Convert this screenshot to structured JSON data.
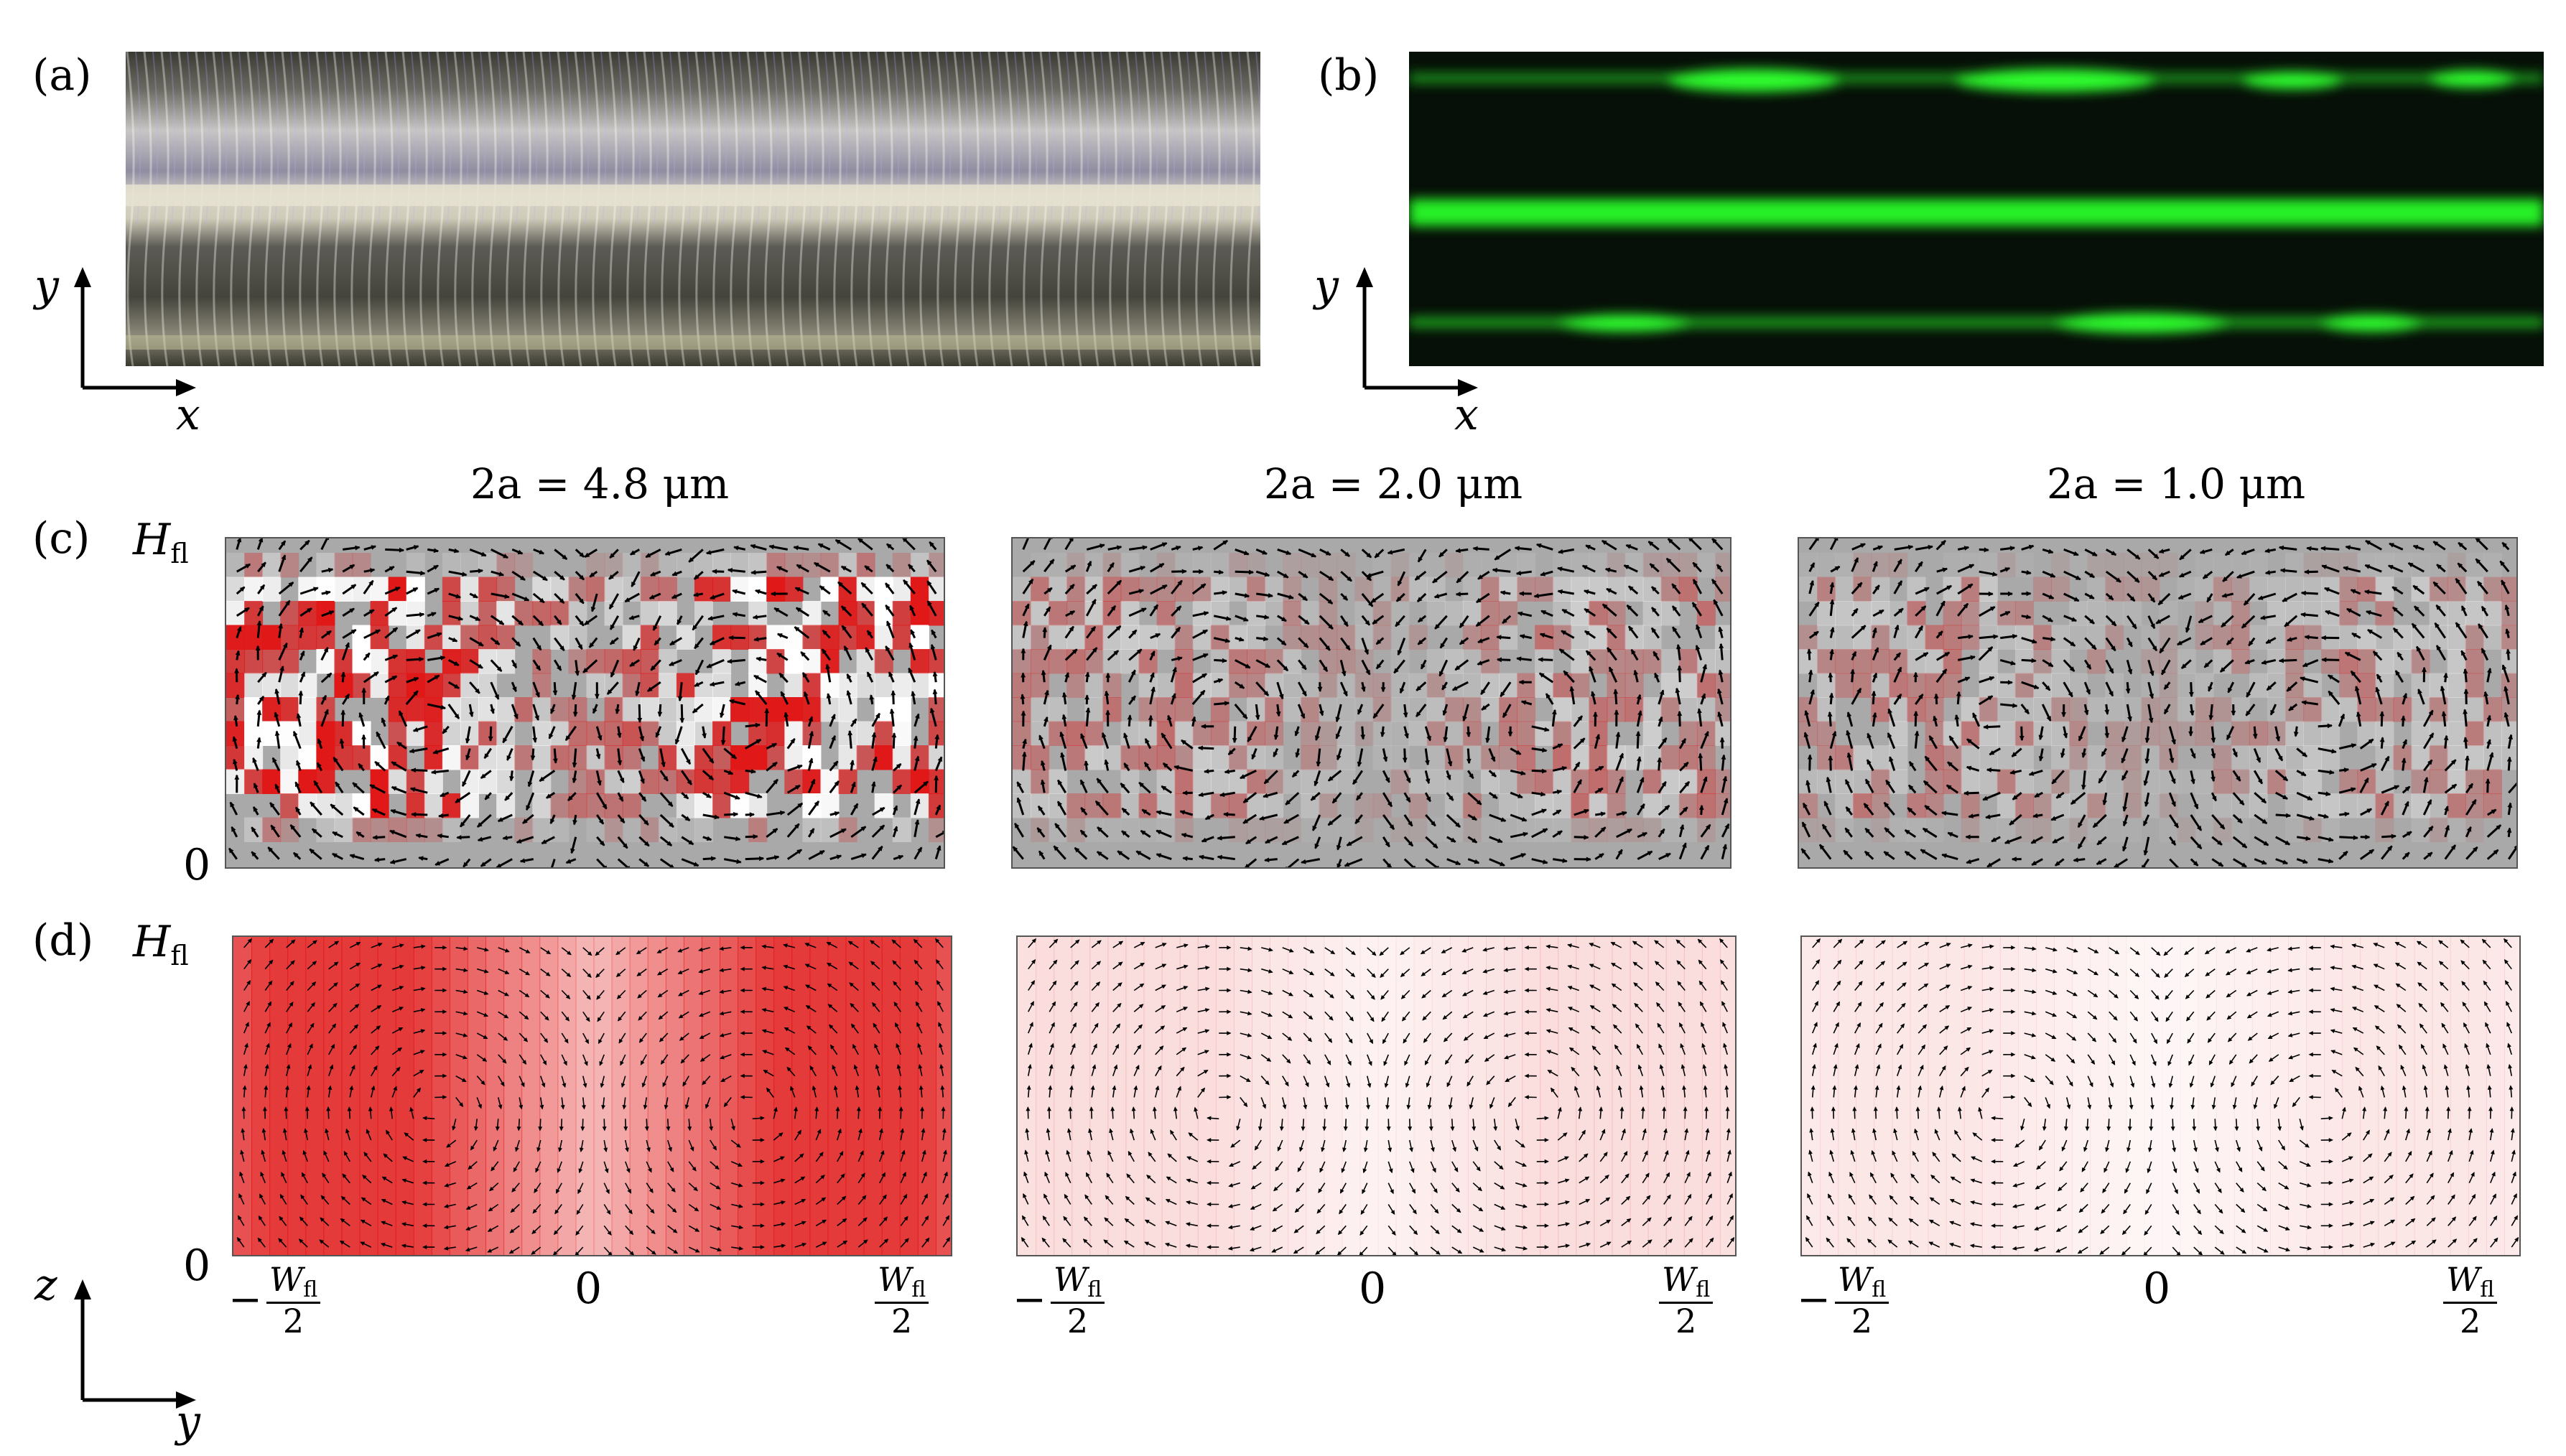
{
  "panel_labels": {
    "a": "(a)",
    "b": "(b)",
    "c": "(c)",
    "d": "(d)"
  },
  "axes_top": {
    "y": "y",
    "x": "x"
  },
  "axes_bottom": {
    "z": "z",
    "y": "y"
  },
  "column_titles": [
    "2a = 4.8 μm",
    "2a = 2.0 μm",
    "2a = 1.0 μm"
  ],
  "z_ticks": {
    "top_main": "H",
    "top_sub": "fl",
    "bottom": "0"
  },
  "y_ticks": {
    "minus": "−",
    "w_main": "W",
    "w_sub": "fl",
    "den": "2",
    "zero": "0"
  },
  "colors": {
    "accent_red": "#e01818",
    "grey_bg": "#a9a9a9",
    "fluor_green": "#27e827"
  },
  "columns": [
    {
      "intensity_c": 0.95,
      "intensity_d": 0.85
    },
    {
      "intensity_c": 0.35,
      "intensity_d": 0.15
    },
    {
      "intensity_c": 0.3,
      "intensity_d": 0.1
    }
  ]
}
